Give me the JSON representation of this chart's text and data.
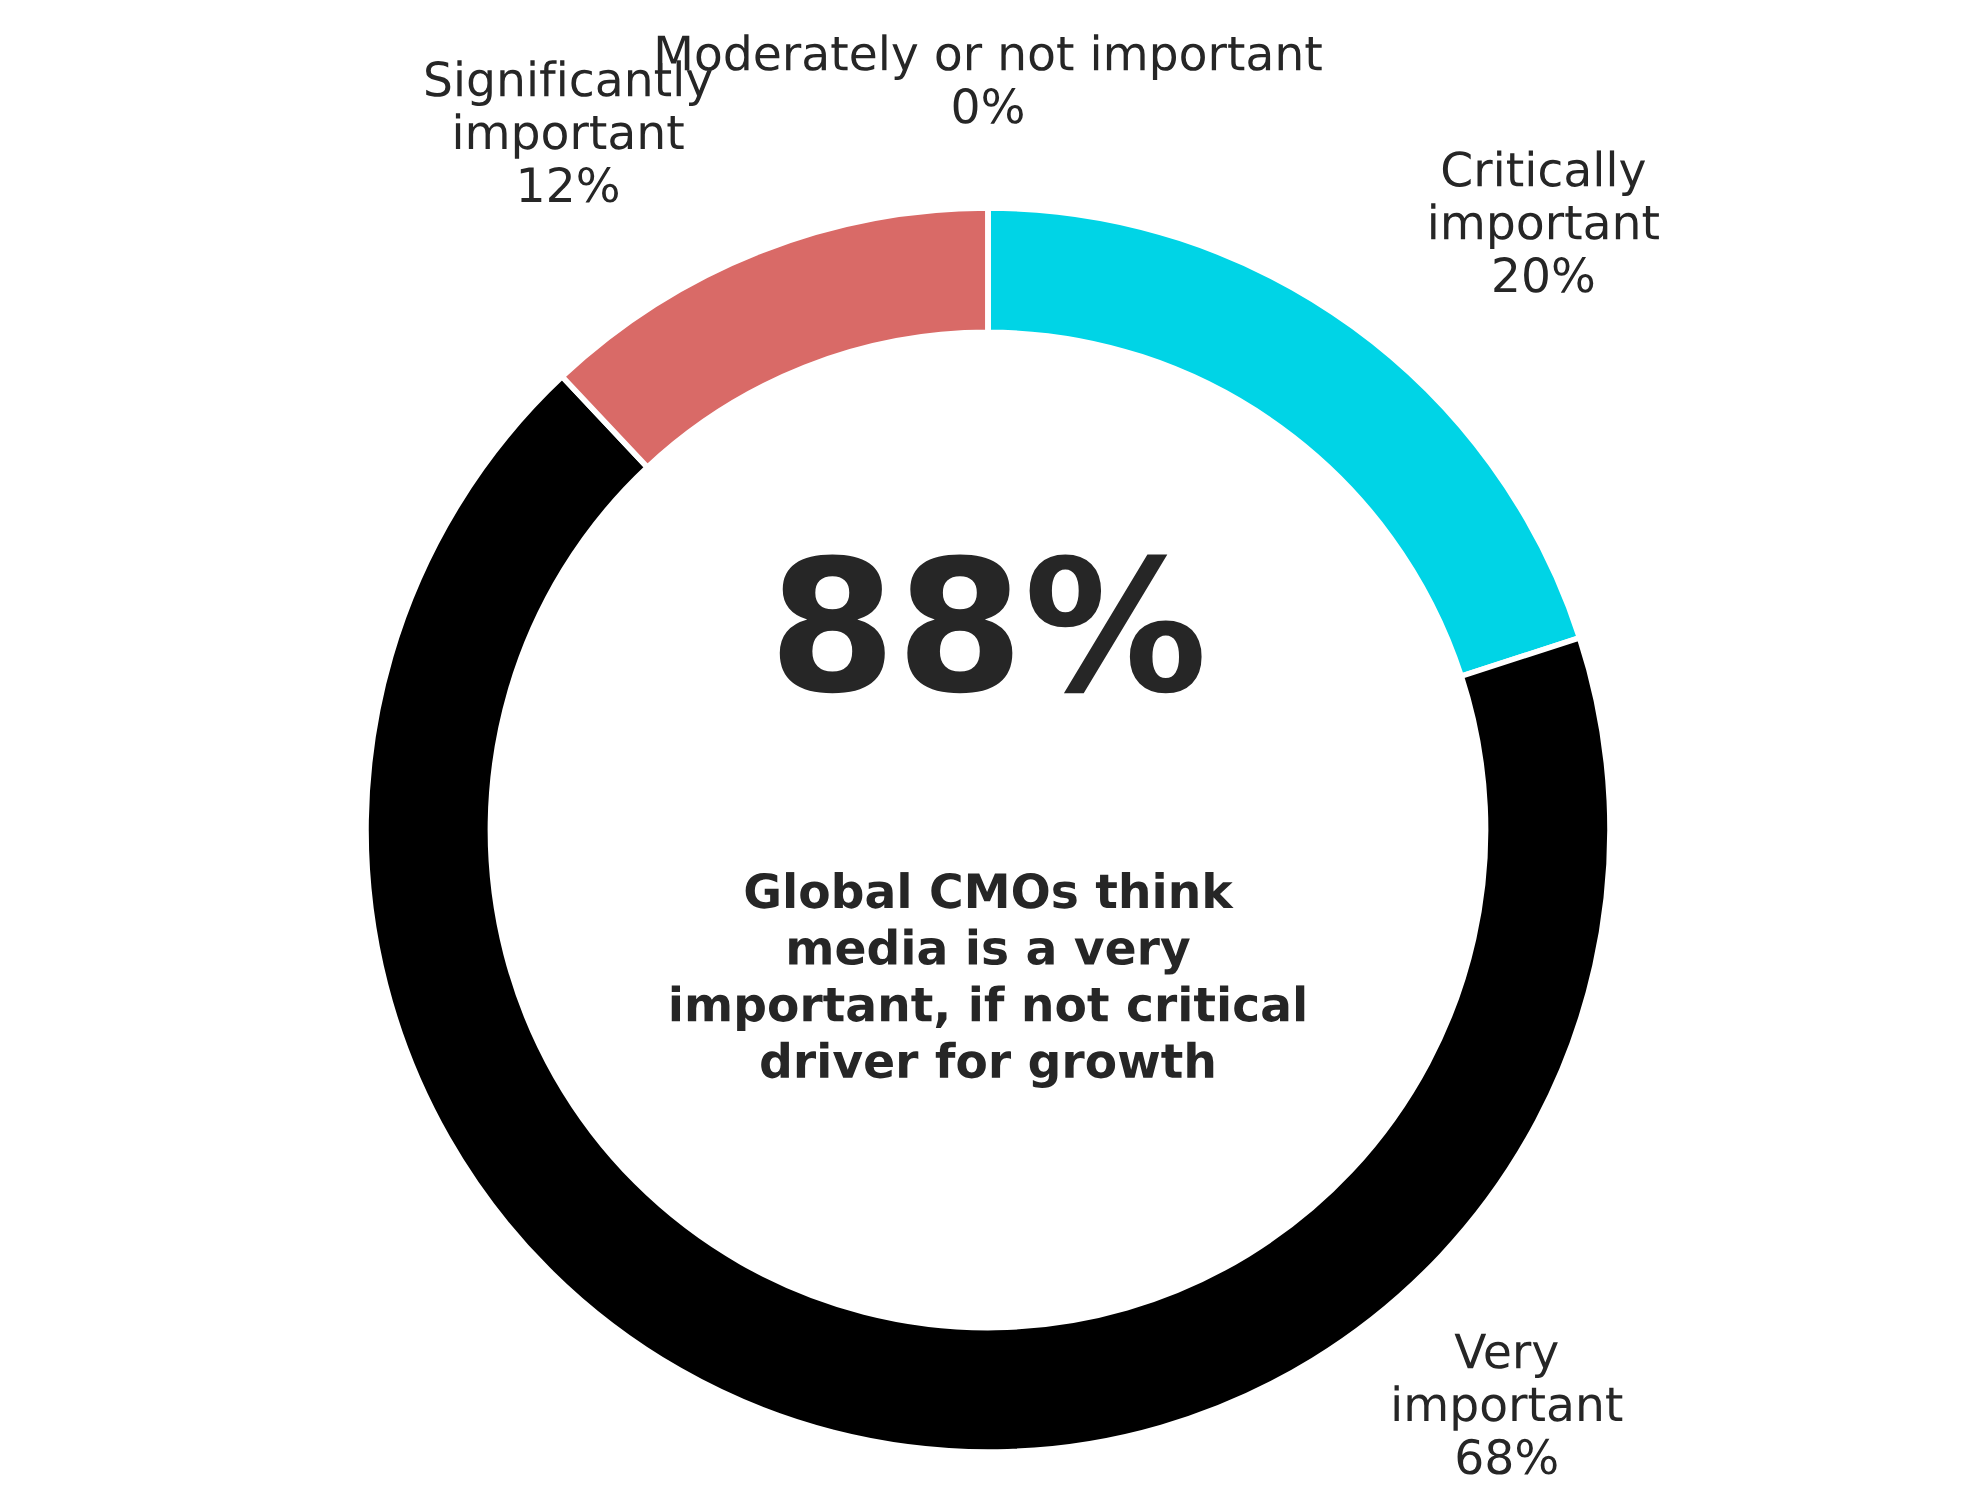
{
  "chart_data": {
    "type": "donut",
    "categories": [
      "Critically\nimportant",
      "Very\nimportant",
      "Significantly\nimportant",
      "Moderately or not important"
    ],
    "values": [
      20,
      68,
      12,
      0
    ],
    "value_labels": [
      "20%",
      "68%",
      "12%",
      "0%"
    ],
    "colors": [
      "#00d4e6",
      "#000000",
      "#d96a67",
      "#bdbdbd"
    ],
    "annotations": [
      "88%",
      "Global CMOs think\nmedia is a very\nimportant, if not critical\ndriver for growth"
    ],
    "legend": false
  }
}
